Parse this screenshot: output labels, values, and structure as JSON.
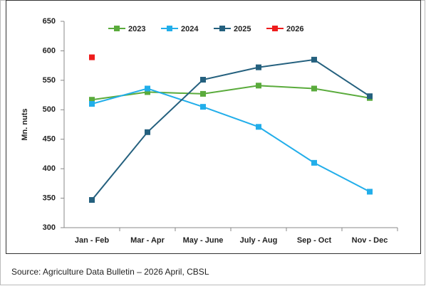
{
  "chart_data": {
    "type": "line",
    "y_label": "Mn. nuts",
    "source": "Source: Agriculture Data Bulletin – 2026 April, CBSL",
    "categories": [
      "Jan - Feb",
      "Mar - Apr",
      "May - June",
      "July - Aug",
      "Sep - Oct",
      "Nov - Dec"
    ],
    "series": [
      {
        "name": "2023",
        "color": "#5aab3c",
        "values": [
          517,
          530,
          527,
          541,
          536,
          520
        ]
      },
      {
        "name": "2024",
        "color": "#22aeea",
        "values": [
          510,
          536,
          505,
          471,
          410,
          361
        ]
      },
      {
        "name": "2025",
        "color": "#24607e",
        "values": [
          347,
          462,
          551,
          572,
          585,
          523
        ]
      },
      {
        "name": "2026",
        "color": "#ee1c1c",
        "values": [
          589,
          null,
          null,
          null,
          null,
          null
        ]
      }
    ],
    "ylim": [
      300,
      650
    ],
    "yticks": [
      300,
      350,
      400,
      450,
      500,
      550,
      600,
      650
    ],
    "grid": false
  }
}
